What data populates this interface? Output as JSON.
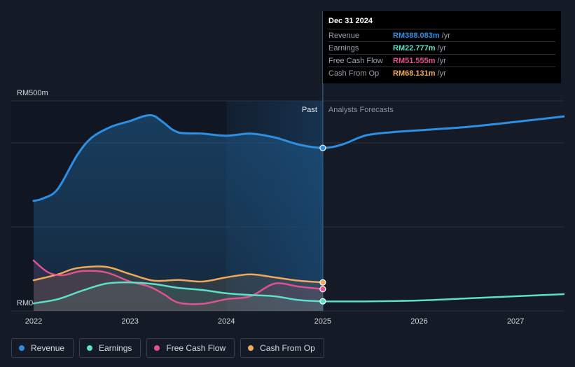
{
  "tooltip": {
    "date": "Dec 31 2024",
    "rows": [
      {
        "label": "Revenue",
        "value": "RM388.083m",
        "unit": "/yr",
        "color": "#2d8fe3"
      },
      {
        "label": "Earnings",
        "value": "RM22.777m",
        "unit": "/yr",
        "color": "#5ce0c8"
      },
      {
        "label": "Free Cash Flow",
        "value": "RM51.555m",
        "unit": "/yr",
        "color": "#e0528f"
      },
      {
        "label": "Cash From Op",
        "value": "RM68.131m",
        "unit": "/yr",
        "color": "#f0a95a"
      }
    ]
  },
  "legend": [
    {
      "label": "Revenue",
      "color": "#2d8fe3"
    },
    {
      "label": "Earnings",
      "color": "#5ce0c8"
    },
    {
      "label": "Free Cash Flow",
      "color": "#e0528f"
    },
    {
      "label": "Cash From Op",
      "color": "#f0a95a"
    }
  ],
  "chart_data": {
    "type": "line",
    "title": "",
    "xlabel": "",
    "ylabel": "",
    "ylim": [
      0,
      500
    ],
    "xlim": [
      2022.0,
      2027.5
    ],
    "y_tick_labels": [
      "RM500m",
      "RM0"
    ],
    "x_ticks": [
      2022,
      2023,
      2024,
      2025,
      2026,
      2027
    ],
    "x_tick_labels": [
      "2022",
      "2023",
      "2024",
      "2025",
      "2026",
      "2027"
    ],
    "region_labels": {
      "past": "Past",
      "forecast": "Analysts Forecasts"
    },
    "past_end": 2025.0,
    "shaded_start": 2024.0,
    "series": [
      {
        "name": "Revenue",
        "color": "#2d8fe3",
        "x": [
          2022.0,
          2022.1,
          2022.25,
          2022.45,
          2022.6,
          2022.8,
          2023.0,
          2023.15,
          2023.25,
          2023.35,
          2023.5,
          2023.75,
          2024.0,
          2024.25,
          2024.5,
          2024.75,
          2025.0,
          2025.2,
          2025.45,
          2025.75,
          2026.0,
          2026.5,
          2027.0,
          2027.5
        ],
        "y": [
          262,
          268,
          290,
          370,
          412,
          438,
          452,
          464,
          464,
          448,
          425,
          422,
          417,
          422,
          413,
          396,
          388,
          396,
          418,
          426,
          430,
          438,
          450,
          463
        ]
      },
      {
        "name": "Earnings",
        "color": "#5ce0c8",
        "x": [
          2022.0,
          2022.25,
          2022.5,
          2022.75,
          2023.0,
          2023.25,
          2023.5,
          2023.75,
          2024.0,
          2024.25,
          2024.5,
          2024.75,
          2025.0,
          2025.5,
          2026.0,
          2026.5,
          2027.0,
          2027.5
        ],
        "y": [
          18,
          28,
          48,
          65,
          68,
          64,
          55,
          50,
          42,
          38,
          35,
          26,
          23,
          23,
          25,
          30,
          35,
          40
        ]
      },
      {
        "name": "Free Cash Flow",
        "color": "#e0528f",
        "x": [
          2022.0,
          2022.15,
          2022.3,
          2022.5,
          2022.75,
          2023.0,
          2023.2,
          2023.35,
          2023.5,
          2023.75,
          2024.0,
          2024.25,
          2024.5,
          2024.75,
          2025.0
        ],
        "y": [
          120,
          92,
          85,
          95,
          92,
          70,
          58,
          40,
          20,
          17,
          28,
          35,
          65,
          58,
          52
        ]
      },
      {
        "name": "Cash From Op",
        "color": "#f0a95a",
        "x": [
          2022.0,
          2022.25,
          2022.45,
          2022.75,
          2023.0,
          2023.25,
          2023.5,
          2023.75,
          2024.0,
          2024.25,
          2024.5,
          2024.75,
          2025.0
        ],
        "y": [
          73,
          87,
          102,
          105,
          88,
          72,
          74,
          70,
          80,
          87,
          80,
          72,
          68
        ]
      }
    ]
  }
}
